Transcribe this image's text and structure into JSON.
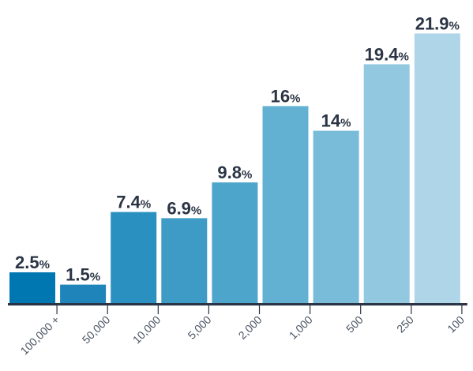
{
  "chart_data": {
    "type": "bar",
    "categories": [
      "100,000 +",
      "50,000",
      "10,000",
      "5,000",
      "2,000",
      "1,000",
      "500",
      "250",
      "100"
    ],
    "values": [
      2.5,
      1.5,
      7.4,
      6.9,
      9.8,
      16,
      14,
      19.4,
      21.9
    ],
    "value_labels": [
      "2.5",
      "1.5",
      "7.4",
      "6.9",
      "9.8",
      "16",
      "14",
      "19.4",
      "21.9"
    ],
    "value_suffix": "%",
    "ylim": [
      0,
      22.5
    ],
    "grid": false,
    "legend": "none",
    "colors": [
      "#0077b0",
      "#1e84b9",
      "#2a90c0",
      "#3d9bc6",
      "#4ea5cb",
      "#62b0d2",
      "#79bcd9",
      "#92c9e1",
      "#aed6e8"
    ],
    "axis_color": "#2a3444",
    "label_color": "#2a3444",
    "tick_label_color": "#4a5462"
  }
}
